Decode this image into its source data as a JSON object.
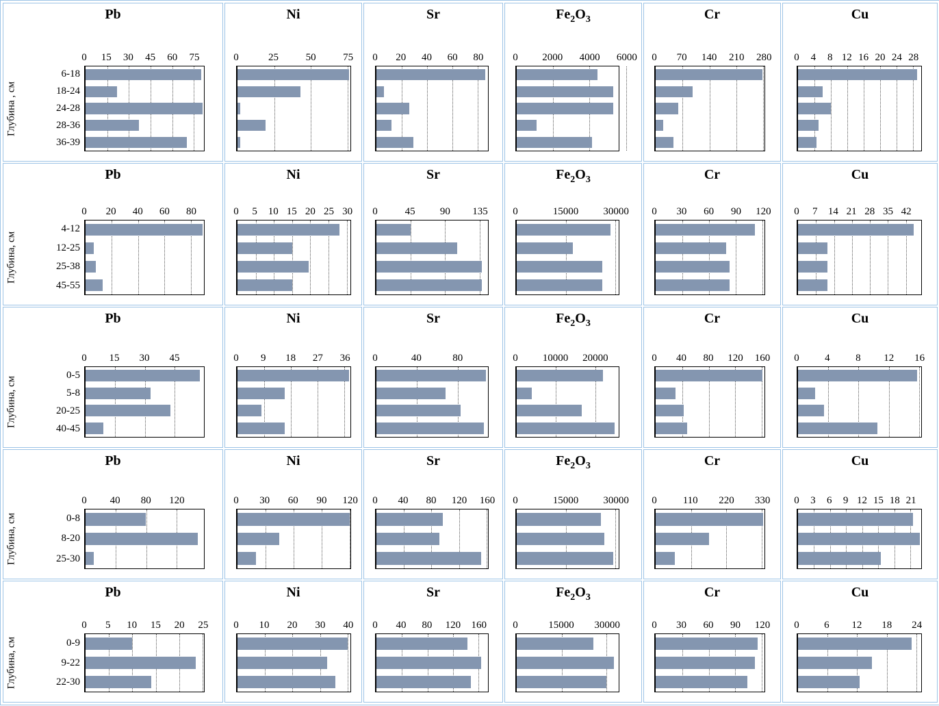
{
  "meta": {
    "bar_color": "#8496b0",
    "cell_border_color": "#9cc3e6",
    "gridline_color": "#555555",
    "background": "#ffffff"
  },
  "chart_data": [
    {
      "type": "bar",
      "orientation": "horizontal",
      "y_axis_title": "Глубина , см",
      "categories": [
        "6-18",
        "18-24",
        "24-28",
        "28-36",
        "36-39"
      ],
      "charts": [
        {
          "type": "bar",
          "title": "Pb",
          "ticks": [
            0,
            15,
            30,
            45,
            60,
            75
          ],
          "xmax": 82,
          "values": [
            80,
            22,
            81,
            37,
            70
          ]
        },
        {
          "type": "bar",
          "title": "Ni",
          "ticks": [
            0,
            25,
            50,
            75
          ],
          "xmax": 77,
          "values": [
            76,
            43,
            2,
            19,
            2
          ]
        },
        {
          "type": "bar",
          "title": "Sr",
          "ticks": [
            0,
            20,
            40,
            60,
            80
          ],
          "xmax": 88,
          "values": [
            86,
            6,
            26,
            12,
            29
          ]
        },
        {
          "type": "bar",
          "title": "Fe2O3",
          "ticks": [
            0,
            2000,
            4000,
            6000
          ],
          "xmax": 5600,
          "values": [
            4450,
            5300,
            5300,
            1080,
            4150
          ]
        },
        {
          "type": "bar",
          "title": "Cr",
          "ticks": [
            0,
            70,
            140,
            210,
            280
          ],
          "xmax": 283,
          "values": [
            278,
            97,
            58,
            20,
            46
          ]
        },
        {
          "type": "bar",
          "title": "Cu",
          "ticks": [
            0,
            4,
            8,
            12,
            16,
            20,
            24,
            28
          ],
          "xmax": 30,
          "values": [
            29,
            6,
            8,
            5,
            4.5
          ]
        }
      ]
    },
    {
      "type": "bar",
      "orientation": "horizontal",
      "y_axis_title": "Глубина, см",
      "categories": [
        "4-12",
        "12-25",
        "25-38",
        "45-55"
      ],
      "charts": [
        {
          "type": "bar",
          "title": "Pb",
          "ticks": [
            0,
            20,
            40,
            60,
            80
          ],
          "xmax": 90,
          "values": [
            89,
            6,
            8,
            13
          ]
        },
        {
          "type": "bar",
          "title": "Ni",
          "ticks": [
            0,
            5,
            10,
            15,
            20,
            25,
            30
          ],
          "xmax": 31,
          "values": [
            28,
            15,
            19.5,
            15
          ]
        },
        {
          "type": "bar",
          "title": "Sr",
          "ticks": [
            0,
            45,
            90,
            135
          ],
          "xmax": 146,
          "values": [
            45,
            106,
            138,
            138
          ]
        },
        {
          "type": "bar",
          "title": "Fe2O3",
          "ticks": [
            0,
            15000,
            30000
          ],
          "xmax": 31000,
          "values": [
            28500,
            17000,
            26000,
            26000
          ]
        },
        {
          "type": "bar",
          "title": "Cr",
          "ticks": [
            0,
            30,
            60,
            90,
            120
          ],
          "xmax": 122,
          "values": [
            111,
            79,
            83,
            83
          ]
        },
        {
          "type": "bar",
          "title": "Cu",
          "ticks": [
            0,
            7,
            14,
            21,
            28,
            35,
            42
          ],
          "xmax": 48,
          "values": [
            45,
            11.5,
            11.5,
            11.5
          ]
        }
      ]
    },
    {
      "type": "bar",
      "orientation": "horizontal",
      "y_axis_title": "Глубина, см",
      "categories": [
        "0-5",
        "5-8",
        "20-25",
        "40-45"
      ],
      "charts": [
        {
          "type": "bar",
          "title": "Pb",
          "ticks": [
            0,
            15,
            30,
            45
          ],
          "xmax": 60,
          "values": [
            58,
            33,
            43,
            9
          ]
        },
        {
          "type": "bar",
          "title": "Ni",
          "ticks": [
            0,
            9,
            18,
            27,
            36
          ],
          "xmax": 38,
          "values": [
            37.5,
            16,
            8,
            16
          ]
        },
        {
          "type": "bar",
          "title": "Sr",
          "ticks": [
            0,
            40,
            80
          ],
          "xmax": 110,
          "values": [
            108,
            68,
            83,
            106
          ]
        },
        {
          "type": "bar",
          "title": "Fe2O3",
          "ticks": [
            0,
            10000,
            20000
          ],
          "xmax": 26000,
          "values": [
            22000,
            3800,
            16500,
            25000
          ]
        },
        {
          "type": "bar",
          "title": "Cr",
          "ticks": [
            0,
            40,
            80,
            120,
            160
          ],
          "xmax": 164,
          "values": [
            161,
            30,
            42,
            47
          ]
        },
        {
          "type": "bar",
          "title": "Cu",
          "ticks": [
            0,
            4,
            8,
            12,
            16
          ],
          "xmax": 16.3,
          "values": [
            15.8,
            2.3,
            3.4,
            10.5
          ]
        }
      ]
    },
    {
      "type": "bar",
      "orientation": "horizontal",
      "y_axis_title": "Глубина, см",
      "categories": [
        "0-8",
        "8-20",
        "25-30"
      ],
      "charts": [
        {
          "type": "bar",
          "title": "Pb",
          "ticks": [
            0,
            40,
            80,
            120
          ],
          "xmax": 156,
          "values": [
            79,
            148,
            11
          ]
        },
        {
          "type": "bar",
          "title": "Ni",
          "ticks": [
            0,
            30,
            60,
            90,
            120
          ],
          "xmax": 121,
          "values": [
            120,
            45,
            20
          ]
        },
        {
          "type": "bar",
          "title": "Sr",
          "ticks": [
            0,
            40,
            80,
            120,
            160
          ],
          "xmax": 162,
          "values": [
            96,
            91,
            152
          ]
        },
        {
          "type": "bar",
          "title": "Fe2O3",
          "ticks": [
            0,
            15000,
            30000
          ],
          "xmax": 31000,
          "values": [
            25500,
            26600,
            29400
          ]
        },
        {
          "type": "bar",
          "title": "Cr",
          "ticks": [
            0,
            110,
            220,
            330
          ],
          "xmax": 338,
          "values": [
            333,
            165,
            59
          ]
        },
        {
          "type": "bar",
          "title": "Cu",
          "ticks": [
            0,
            3,
            6,
            9,
            12,
            15,
            18,
            21
          ],
          "xmax": 23,
          "values": [
            21.5,
            22.8,
            15.5
          ]
        }
      ]
    },
    {
      "type": "bar",
      "orientation": "horizontal",
      "y_axis_title": "Глубина, см",
      "categories": [
        "0-9",
        "9-22",
        "22-30"
      ],
      "charts": [
        {
          "type": "bar",
          "title": "Pb",
          "ticks": [
            0,
            5,
            10,
            15,
            20,
            25
          ],
          "xmax": 25.3,
          "values": [
            10,
            23.5,
            14
          ]
        },
        {
          "type": "bar",
          "title": "Ni",
          "ticks": [
            0,
            10,
            20,
            30,
            40
          ],
          "xmax": 41,
          "values": [
            40,
            32.5,
            35.5
          ]
        },
        {
          "type": "bar",
          "title": "Sr",
          "ticks": [
            0,
            40,
            80,
            120,
            160
          ],
          "xmax": 175,
          "values": [
            143,
            164,
            148
          ]
        },
        {
          "type": "bar",
          "title": "Fe2O3",
          "ticks": [
            0,
            15000,
            30000
          ],
          "xmax": 34000,
          "values": [
            25500,
            32500,
            30000
          ]
        },
        {
          "type": "bar",
          "title": "Cr",
          "ticks": [
            0,
            30,
            60,
            90,
            120
          ],
          "xmax": 123,
          "values": [
            115,
            112,
            104
          ]
        },
        {
          "type": "bar",
          "title": "Cu",
          "ticks": [
            0,
            6,
            12,
            18,
            24
          ],
          "xmax": 25,
          "values": [
            23,
            15,
            12.5
          ]
        }
      ]
    }
  ]
}
